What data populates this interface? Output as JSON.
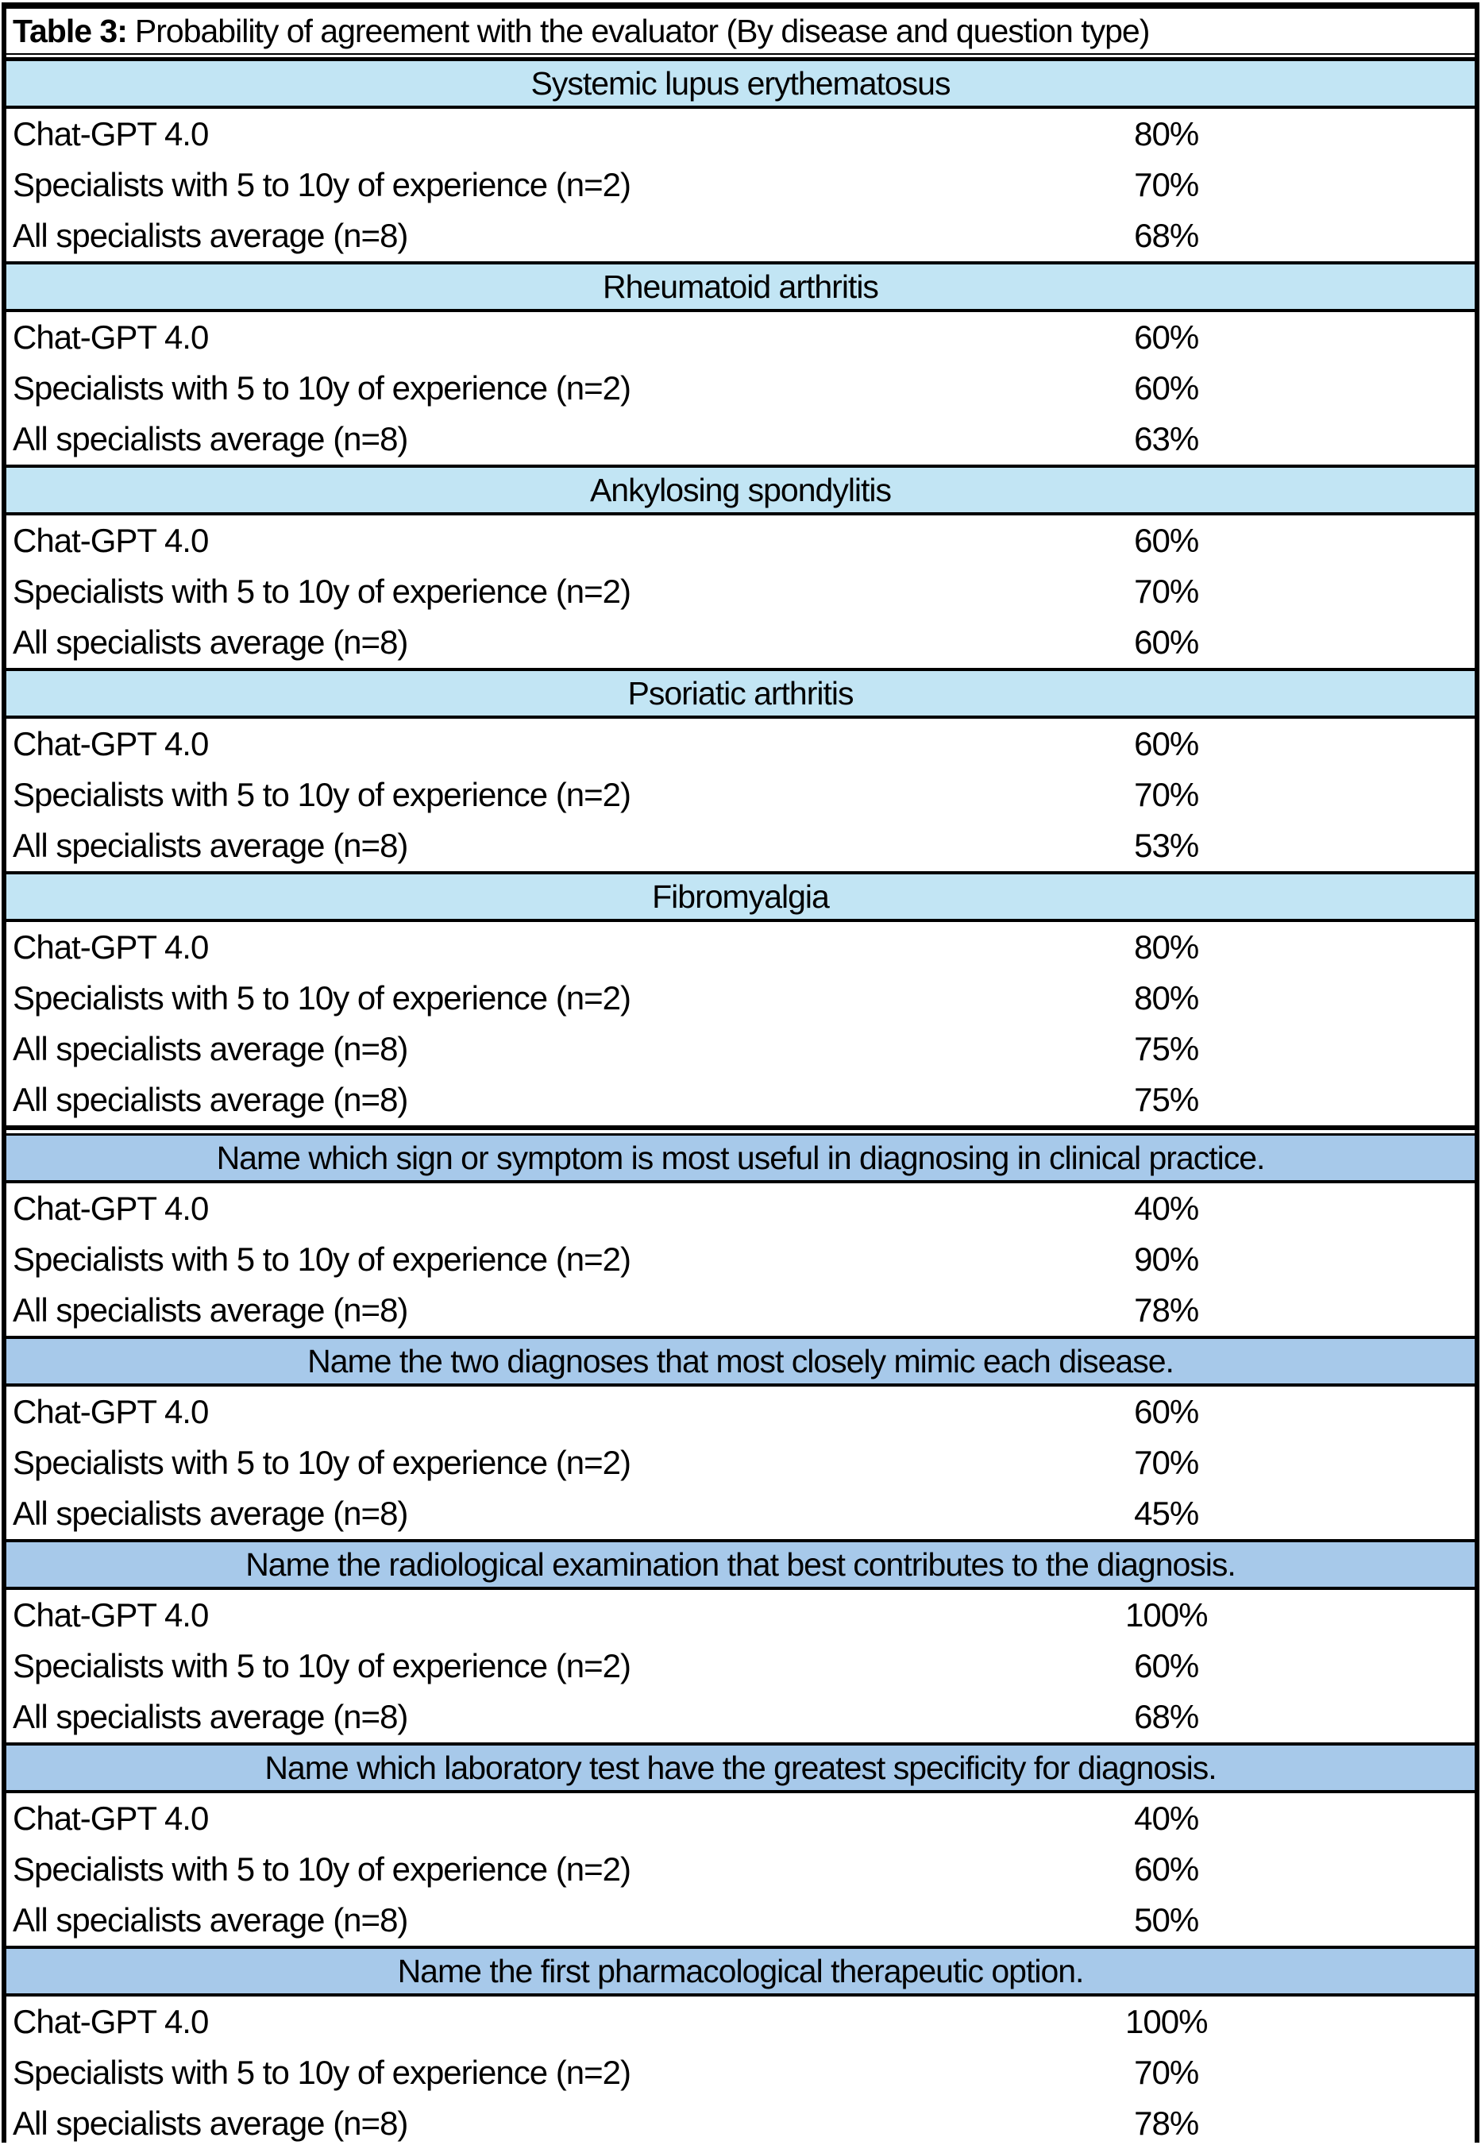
{
  "title": {
    "label": "Table 3:",
    "text": "Probability of agreement with the evaluator (By disease and question type)"
  },
  "colors": {
    "disease_header_bg": "#c2e5f4",
    "question_header_bg": "#a7c9ea",
    "border": "#000000",
    "text": "#000000",
    "row_bg": "#ffffff"
  },
  "sections": [
    {
      "type": "disease",
      "header": "Systemic lupus erythematosus",
      "rows": [
        {
          "label": "Chat-GPT 4.0",
          "value": "80%"
        },
        {
          "label": "Specialists with 5 to 10y of experience (n=2)",
          "value": "70%"
        },
        {
          "label": "All specialists average (n=8)",
          "value": "68%"
        }
      ]
    },
    {
      "type": "disease",
      "header": "Rheumatoid arthritis",
      "rows": [
        {
          "label": "Chat-GPT 4.0",
          "value": "60%"
        },
        {
          "label": "Specialists with 5 to 10y of experience (n=2)",
          "value": "60%"
        },
        {
          "label": "All specialists average (n=8)",
          "value": "63%"
        }
      ]
    },
    {
      "type": "disease",
      "header": "Ankylosing spondylitis",
      "rows": [
        {
          "label": "Chat-GPT 4.0",
          "value": "60%"
        },
        {
          "label": "Specialists with 5 to 10y of experience (n=2)",
          "value": "70%"
        },
        {
          "label": "All specialists average (n=8)",
          "value": "60%"
        }
      ]
    },
    {
      "type": "disease",
      "header": "Psoriatic arthritis",
      "rows": [
        {
          "label": "Chat-GPT 4.0",
          "value": "60%"
        },
        {
          "label": "Specialists with 5 to 10y of experience (n=2)",
          "value": "70%"
        },
        {
          "label": "All specialists average (n=8)",
          "value": "53%"
        }
      ]
    },
    {
      "type": "disease",
      "header": "Fibromyalgia",
      "rows": [
        {
          "label": "Chat-GPT 4.0",
          "value": "80%"
        },
        {
          "label": "Specialists with 5 to 10y of experience (n=2)",
          "value": "80%"
        },
        {
          "label": "All specialists average (n=8)",
          "value": "75%"
        },
        {
          "label": "All specialists average (n=8)",
          "value": "75%"
        }
      ]
    },
    {
      "type": "question",
      "header": "Name which sign or symptom is most useful in diagnosing in clinical practice.",
      "rows": [
        {
          "label": "Chat-GPT 4.0",
          "value": "40%"
        },
        {
          "label": "Specialists with 5 to 10y of experience (n=2)",
          "value": "90%"
        },
        {
          "label": "All specialists average (n=8)",
          "value": "78%"
        }
      ]
    },
    {
      "type": "question",
      "header": "Name the two diagnoses that most closely mimic each disease.",
      "rows": [
        {
          "label": "Chat-GPT 4.0",
          "value": "60%"
        },
        {
          "label": "Specialists with 5 to 10y of experience (n=2)",
          "value": "70%"
        },
        {
          "label": "All specialists average (n=8)",
          "value": "45%"
        }
      ]
    },
    {
      "type": "question",
      "header": "Name the radiological examination that best contributes to the diagnosis.",
      "rows": [
        {
          "label": "Chat-GPT 4.0",
          "value": "100%"
        },
        {
          "label": "Specialists with 5 to 10y of experience (n=2)",
          "value": "60%"
        },
        {
          "label": "All specialists average (n=8)",
          "value": "68%"
        }
      ]
    },
    {
      "type": "question",
      "header": "Name which laboratory test have the greatest specificity for diagnosis.",
      "rows": [
        {
          "label": "Chat-GPT 4.0",
          "value": "40%"
        },
        {
          "label": "Specialists with 5 to 10y of experience (n=2)",
          "value": "60%"
        },
        {
          "label": "All specialists average (n=8)",
          "value": "50%"
        }
      ]
    },
    {
      "type": "question",
      "header": "Name the first pharmacological therapeutic option.",
      "rows": [
        {
          "label": "Chat-GPT 4.0",
          "value": "100%"
        },
        {
          "label": "Specialists with 5 to 10y of experience (n=2)",
          "value": "70%"
        },
        {
          "label": "All specialists average (n=8)",
          "value": "78%"
        }
      ]
    }
  ]
}
